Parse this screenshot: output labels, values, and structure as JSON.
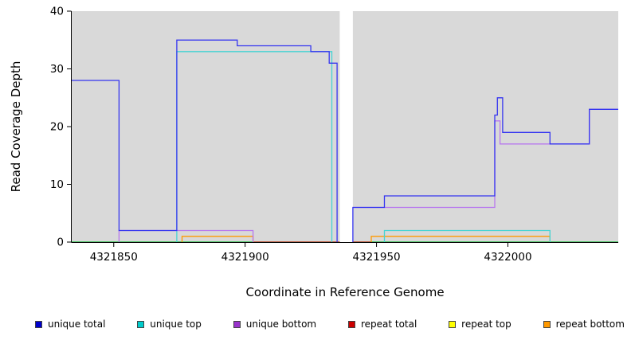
{
  "chart_data": {
    "type": "line",
    "step": true,
    "title": "",
    "xlabel": "Coordinate in Reference Genome",
    "ylabel": "Read Coverage Depth",
    "xlim": [
      4321834,
      4322042
    ],
    "ylim": [
      0,
      40
    ],
    "yticks": [
      0,
      10,
      20,
      30,
      40
    ],
    "xticks": [
      4321850,
      4321900,
      4321950,
      4322000
    ],
    "plot_bg_color": "#d9d9d9",
    "axis_color": "#000000",
    "grid": false,
    "legend_position": "bottom",
    "gap_regions": [
      {
        "from": 4321936,
        "to": 4321941
      }
    ],
    "series": [
      {
        "name": "repeat top",
        "color": "#ffff00",
        "segments": [
          [
            [
              4321834,
              0
            ],
            [
              4321936,
              0
            ]
          ],
          [
            [
              4321941,
              0
            ],
            [
              4322042,
              0
            ]
          ]
        ]
      },
      {
        "name": "baseline",
        "color": "#00b44b",
        "in_legend": false,
        "segments": [
          [
            [
              4321834,
              0
            ],
            [
              4321936,
              0
            ]
          ],
          [
            [
              4321941,
              0
            ],
            [
              4322042,
              0
            ]
          ]
        ]
      },
      {
        "name": "repeat total",
        "color": "#cc2222",
        "segments": [
          [
            [
              4321903,
              0
            ],
            [
              4321936,
              0
            ]
          ],
          [
            [
              4321941,
              0
            ],
            [
              4321948,
              0
            ]
          ]
        ]
      },
      {
        "name": "repeat bottom",
        "color": "#ff9900",
        "segments": [
          [
            [
              4321876,
              0
            ],
            [
              4321876,
              1
            ],
            [
              4321903,
              1
            ],
            [
              4321903,
              0
            ]
          ],
          [
            [
              4321948,
              0
            ],
            [
              4321948,
              1
            ],
            [
              4322016,
              1
            ],
            [
              4322016,
              0
            ]
          ]
        ]
      },
      {
        "name": "unique top",
        "color": "#45d4d4",
        "segments": [
          [
            [
              4321874,
              0
            ],
            [
              4321874,
              33
            ],
            [
              4321933,
              33
            ],
            [
              4321933,
              0
            ]
          ],
          [
            [
              4321953,
              0
            ],
            [
              4321953,
              2
            ],
            [
              4322016,
              2
            ],
            [
              4322016,
              0
            ]
          ]
        ]
      },
      {
        "name": "unique bottom",
        "color": "#b878ee",
        "segments": [
          [
            [
              4321852,
              0
            ],
            [
              4321852,
              2
            ],
            [
              4321903,
              2
            ],
            [
              4321903,
              0
            ]
          ],
          [
            [
              4321941,
              6
            ],
            [
              4321995,
              6
            ],
            [
              4321995,
              21
            ],
            [
              4321997,
              21
            ],
            [
              4321997,
              17
            ],
            [
              4322031,
              17
            ],
            [
              4322031,
              23
            ],
            [
              4322042,
              23
            ]
          ]
        ]
      },
      {
        "name": "unique total",
        "color": "#3535f0",
        "segments": [
          [
            [
              4321834,
              28
            ],
            [
              4321852,
              28
            ],
            [
              4321852,
              2
            ],
            [
              4321874,
              2
            ],
            [
              4321874,
              35
            ],
            [
              4321897,
              35
            ],
            [
              4321897,
              34
            ],
            [
              4321925,
              34
            ],
            [
              4321925,
              33
            ],
            [
              4321932,
              33
            ],
            [
              4321932,
              31
            ],
            [
              4321935,
              31
            ],
            [
              4321935,
              0
            ]
          ],
          [
            [
              4321941,
              0
            ],
            [
              4321941,
              6
            ],
            [
              4321953,
              6
            ],
            [
              4321953,
              8
            ],
            [
              4321995,
              8
            ],
            [
              4321995,
              22
            ],
            [
              4321996,
              22
            ],
            [
              4321996,
              25
            ],
            [
              4321998,
              25
            ],
            [
              4321998,
              19
            ],
            [
              4322016,
              19
            ],
            [
              4322016,
              17
            ],
            [
              4322031,
              17
            ],
            [
              4322031,
              23
            ],
            [
              4322042,
              23
            ]
          ]
        ]
      }
    ],
    "legend": [
      {
        "label": "unique total",
        "color": "#0000cc"
      },
      {
        "label": "unique top",
        "color": "#00cccc"
      },
      {
        "label": "unique bottom",
        "color": "#9933cc"
      },
      {
        "label": "repeat total",
        "color": "#cc0000"
      },
      {
        "label": "repeat top",
        "color": "#ffff00"
      },
      {
        "label": "repeat bottom",
        "color": "#ff9900"
      }
    ]
  }
}
